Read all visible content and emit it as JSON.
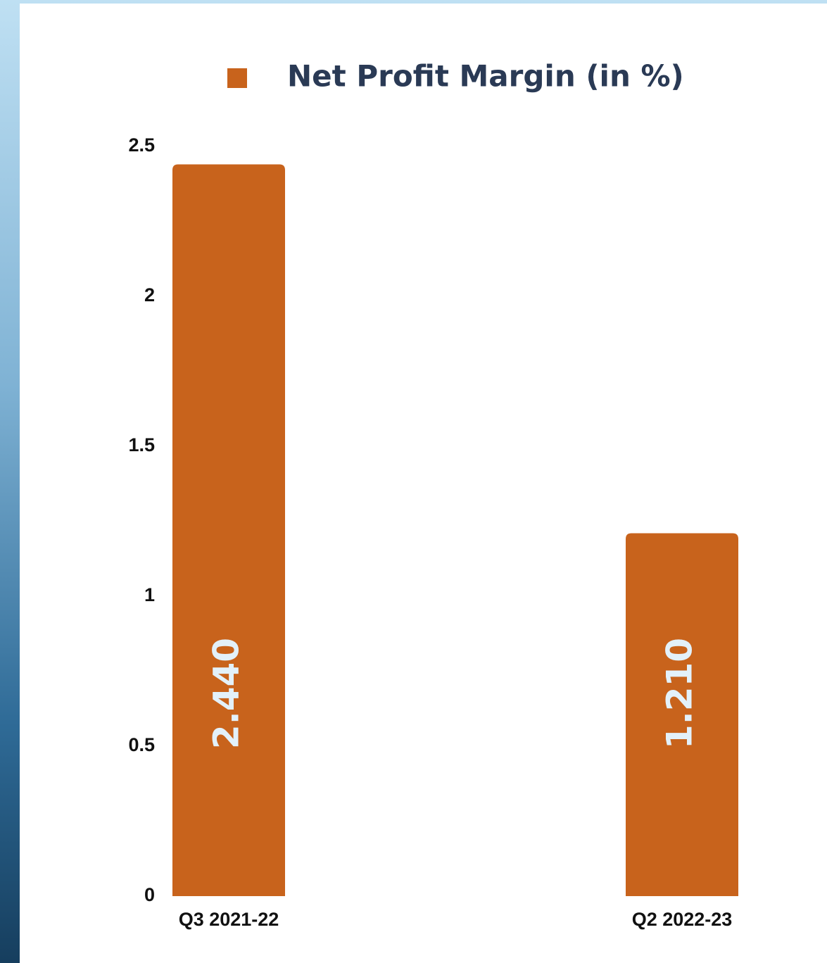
{
  "chart_data": {
    "type": "bar",
    "categories": [
      "Q3 2021-22",
      "Q2 2022-23"
    ],
    "series": [
      {
        "name": "Net Profit Margin (in %)",
        "color": "#c8631c",
        "values": [
          2.44,
          1.21
        ],
        "value_labels": [
          "2.440",
          "1.210"
        ]
      }
    ],
    "ylim": [
      0,
      2.5
    ],
    "yticks": [
      0,
      0.5,
      1,
      1.5,
      2,
      2.5
    ],
    "grid": false,
    "legend": "top"
  }
}
